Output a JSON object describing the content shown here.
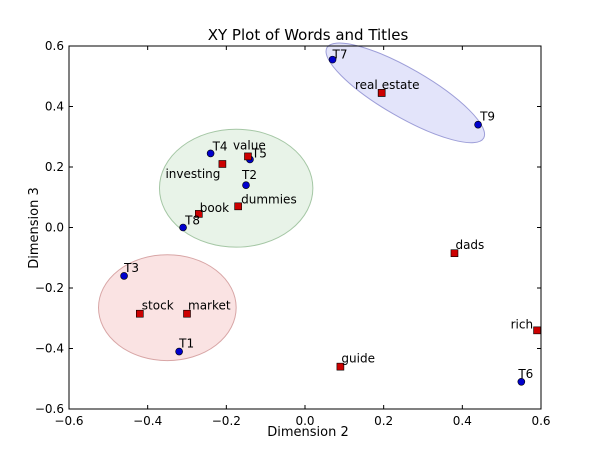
{
  "chart_data": {
    "type": "scatter",
    "title": "XY Plot of Words and Titles",
    "xlabel": "Dimension 2",
    "ylabel": "Dimension 3",
    "xlim": [
      -0.6,
      0.6
    ],
    "ylim": [
      -0.6,
      0.6
    ],
    "xticks": [
      -0.6,
      -0.4,
      -0.2,
      0.0,
      0.2,
      0.4,
      0.6
    ],
    "yticks": [
      -0.6,
      -0.4,
      -0.2,
      0.0,
      0.2,
      0.4,
      0.6
    ],
    "xtick_labels": [
      "−0.6",
      "−0.4",
      "−0.2",
      "0.0",
      "0.2",
      "0.4",
      "0.6"
    ],
    "ytick_labels": [
      "−0.6",
      "−0.4",
      "−0.2",
      "0.0",
      "0.2",
      "0.4",
      "0.6"
    ],
    "grid": false,
    "titles": [
      {
        "label": "T1",
        "x": -0.32,
        "y": -0.41
      },
      {
        "label": "T2",
        "x": -0.15,
        "y": 0.14
      },
      {
        "label": "T3",
        "x": -0.46,
        "y": -0.16
      },
      {
        "label": "T4",
        "x": -0.24,
        "y": 0.245
      },
      {
        "label": "T5",
        "x": -0.14,
        "y": 0.225
      },
      {
        "label": "T6",
        "x": 0.55,
        "y": -0.51
      },
      {
        "label": "T7",
        "x": 0.07,
        "y": 0.555
      },
      {
        "label": "T8",
        "x": -0.31,
        "y": 0.0
      },
      {
        "label": "T9",
        "x": 0.44,
        "y": 0.34
      }
    ],
    "words": [
      {
        "label": "book",
        "x": -0.27,
        "y": 0.045
      },
      {
        "label": "dads",
        "x": 0.38,
        "y": -0.085
      },
      {
        "label": "dummies",
        "x": -0.17,
        "y": 0.07
      },
      {
        "label": "estate",
        "x": 0.195,
        "y": 0.445
      },
      {
        "label": "guide",
        "x": 0.09,
        "y": -0.46
      },
      {
        "label": "investing",
        "x": -0.21,
        "y": 0.21
      },
      {
        "label": "market",
        "x": -0.3,
        "y": -0.285
      },
      {
        "label": "real",
        "x": 0.195,
        "y": 0.445
      },
      {
        "label": "rich",
        "x": 0.59,
        "y": -0.34
      },
      {
        "label": "stock",
        "x": -0.42,
        "y": -0.285
      },
      {
        "label": "value",
        "x": -0.145,
        "y": 0.235
      }
    ],
    "clusters": [
      {
        "cx": 0.255,
        "cy": 0.445,
        "rx": 0.23,
        "ry": 0.08,
        "angle_deg": 30,
        "fill": "#cccdf5",
        "stroke": "#9d9ed8"
      },
      {
        "cx": -0.175,
        "cy": 0.13,
        "rx": 0.195,
        "ry": 0.195,
        "angle_deg": 0,
        "fill": "#d5ead5",
        "stroke": "#a5c7a5"
      },
      {
        "cx": -0.35,
        "cy": -0.265,
        "rx": 0.175,
        "ry": 0.175,
        "angle_deg": 0,
        "fill": "#f6cccc",
        "stroke": "#d8a6a6"
      }
    ],
    "title_color": "#0000cc",
    "word_color": "#cc0000"
  }
}
